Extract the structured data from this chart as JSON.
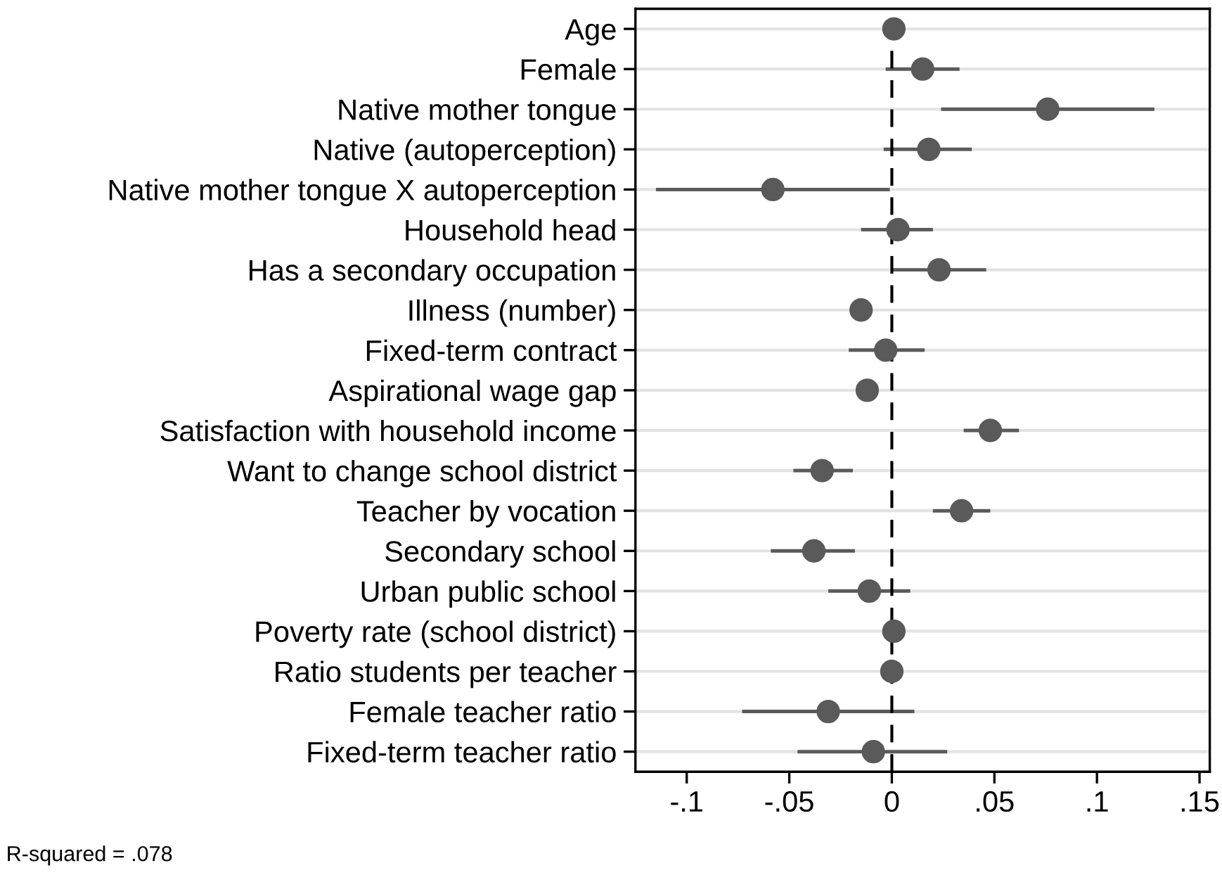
{
  "chart_data": {
    "type": "scatter",
    "orientation": "horizontal",
    "categories": [
      "Age",
      "Female",
      "Native mother tongue",
      "Native (autoperception)",
      "Native mother tongue X autoperception",
      "Household head",
      "Has a secondary occupation",
      "Illness (number)",
      "Fixed-term contract",
      "Aspirational wage gap",
      "Satisfaction with household income",
      "Want to change school district",
      "Teacher by vocation",
      "Secondary school",
      "Urban public school",
      "Poverty rate (school district)",
      "Ratio students per teacher",
      "Female teacher ratio",
      "Fixed-term teacher ratio"
    ],
    "values": [
      0.001,
      0.015,
      0.076,
      0.018,
      -0.058,
      0.003,
      0.023,
      -0.015,
      -0.003,
      -0.012,
      0.048,
      -0.034,
      0.034,
      -0.038,
      -0.011,
      0.001,
      0.0,
      -0.031,
      -0.009
    ],
    "errors": [
      null,
      [
        -0.003,
        0.033
      ],
      [
        0.024,
        0.128
      ],
      [
        -0.004,
        0.039
      ],
      [
        -0.115,
        -0.001
      ],
      [
        -0.015,
        0.02
      ],
      [
        0.0,
        0.046
      ],
      null,
      [
        -0.021,
        0.016
      ],
      null,
      [
        0.035,
        0.062
      ],
      [
        -0.048,
        -0.019
      ],
      [
        0.02,
        0.048
      ],
      [
        -0.059,
        -0.018
      ],
      [
        -0.031,
        0.009
      ],
      null,
      null,
      [
        -0.073,
        0.011
      ],
      [
        -0.046,
        0.027
      ]
    ],
    "color": "#5a5a5a",
    "marker": "circle",
    "grid": "y",
    "legend": false,
    "xlim": [
      -0.125,
      0.155
    ],
    "xticks": [
      {
        "value": -0.1,
        "label": "-.1"
      },
      {
        "value": -0.05,
        "label": "-.05"
      },
      0,
      {
        "value": 0.05,
        "label": ".05"
      },
      {
        "value": 0.1,
        "label": ".1"
      },
      {
        "value": 0.15,
        "label": ".15"
      }
    ],
    "ref_lines": [
      {
        "axis": "x",
        "value": 0,
        "label": null,
        "color": "#000000",
        "line_style": "dashed"
      }
    ],
    "annotations": [
      "R-squared = .078"
    ]
  }
}
